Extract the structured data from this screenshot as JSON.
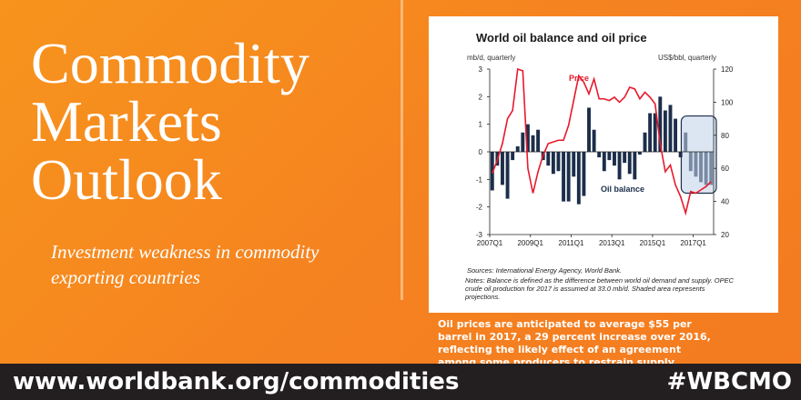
{
  "header": {
    "title_lines": [
      "Commodity",
      "Markets",
      "Outlook"
    ],
    "subtitle": "Investment weakness in commodity exporting countries"
  },
  "chart_caption": "Oil prices are anticipated to average $55 per barrel in 2017, a 29 percent increase over 2016, reflecting the likely effect of an agreement among some producers to restrain supply.",
  "footer": {
    "url": "www.worldbank.org/commodities",
    "hashtag": "#WBCMO"
  },
  "colors": {
    "background": "#f58220",
    "bar": "#1c2e4a",
    "projected_bar": "#7a8aa3",
    "price_line": "#e8192c",
    "footer": "#231f20"
  },
  "chart_data": {
    "type": "bar",
    "title": "World oil balance and oil price",
    "left_axis_label": "mb/d, quarterly",
    "right_axis_label": "US$/bbl, quarterly",
    "left_ylim": [
      -3,
      3
    ],
    "right_ylim": [
      20,
      120
    ],
    "left_ticks": [
      "3",
      "2",
      "1",
      "0",
      "-1",
      "-2",
      "-3"
    ],
    "right_ticks": [
      "120",
      "100",
      "80",
      "60",
      "40",
      "20"
    ],
    "x_ticks": [
      "2007Q1",
      "2009Q1",
      "2011Q1",
      "2013Q1",
      "2015Q1",
      "2017Q1"
    ],
    "series": [
      {
        "name": "Oil balance",
        "kind": "bar",
        "values": [
          -1.4,
          -0.5,
          -1.2,
          -1.7,
          -0.3,
          0.2,
          0.7,
          1.0,
          0.6,
          0.8,
          -0.3,
          -0.5,
          -0.8,
          -0.7,
          -1.8,
          -1.8,
          -0.9,
          -1.9,
          -1.6,
          1.6,
          0.8,
          -0.2,
          -0.7,
          -0.3,
          -0.5,
          -1.0,
          -0.4,
          -0.8,
          -1.0,
          -0.1,
          0.7,
          1.4,
          1.4,
          2.0,
          1.5,
          1.7,
          1.2,
          -0.2,
          0.7,
          -0.7,
          -0.9,
          -1.1,
          -1.2,
          -1.2
        ],
        "projected_from_index": 38
      },
      {
        "name": "Price",
        "kind": "line",
        "values": [
          57,
          65,
          75,
          90,
          95,
          120,
          119,
          60,
          45,
          58,
          68,
          75,
          76,
          77,
          77,
          86,
          101,
          116,
          112,
          105,
          114,
          102,
          102,
          101,
          103,
          100,
          103,
          109,
          108,
          102,
          106,
          103,
          99,
          75,
          58,
          62,
          50,
          43,
          33,
          46,
          45,
          47,
          49,
          52
        ]
      }
    ],
    "annotations": [
      "Price",
      "Oil balance"
    ],
    "sources": "Sources: International Energy Agency, World Bank.",
    "notes": "Notes: Balance is defined as the difference between world oil demand and supply. OPEC crude oil production for 2017 is assumed at 33.0 mb/d. Shaded area represents projections."
  }
}
